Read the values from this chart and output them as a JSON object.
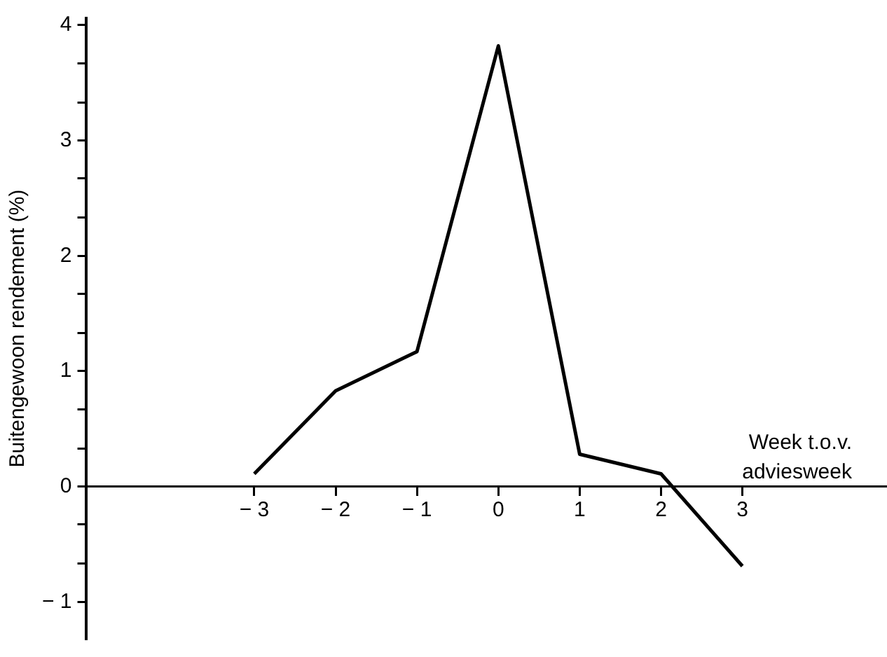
{
  "chart_data": {
    "type": "line",
    "xlabel": "Week t.o.v. adviesweek",
    "ylabel": "Buitengewoon rendement (%)",
    "x": [
      -3,
      -2,
      -1,
      0,
      1,
      2,
      3
    ],
    "series": [
      {
        "color": "#000000",
        "values": [
          0.11,
          0.83,
          1.17,
          3.82,
          0.28,
          0.11,
          -0.69
        ]
      }
    ],
    "xlim": [
      -5.07,
      4.76
    ],
    "xticks": [
      {
        "value": -3,
        "label": "− 3"
      },
      {
        "value": -2,
        "label": "− 2"
      },
      {
        "value": -1,
        "label": "− 1"
      },
      0,
      1,
      2,
      3
    ],
    "ylim": [
      -1.32,
      4.06
    ],
    "yticks": [
      {
        "value": -1,
        "label": "− 1"
      },
      {
        "value": -0.67,
        "label": null
      },
      {
        "value": -0.33,
        "label": null
      },
      0,
      {
        "value": 0.33,
        "label": null
      },
      {
        "value": 0.67,
        "label": null
      },
      1,
      {
        "value": 1.33,
        "label": null
      },
      {
        "value": 1.67,
        "label": null
      },
      2,
      {
        "value": 2.33,
        "label": null
      },
      {
        "value": 2.67,
        "label": null
      },
      3,
      {
        "value": 3.33,
        "label": null
      },
      {
        "value": 3.67,
        "label": null
      },
      4
    ],
    "grid": false,
    "legend": false,
    "marker": "none",
    "line_style": "solid"
  }
}
